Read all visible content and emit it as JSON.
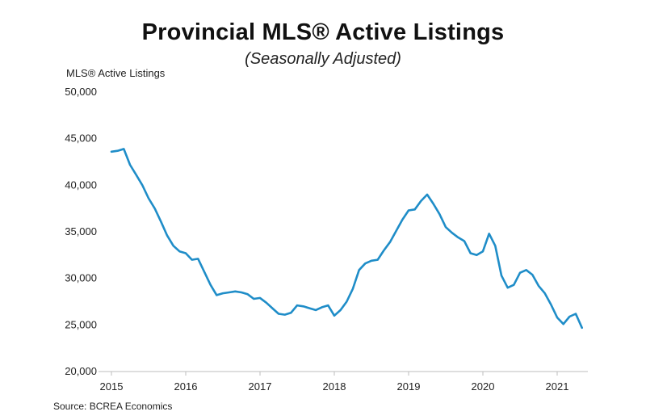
{
  "chart_data": {
    "type": "line",
    "title": "Provincial MLS® Active Listings",
    "subtitle": "(Seasonally Adjusted)",
    "ylabel": "MLS® Active Listings",
    "xlabel": "",
    "source": "Source: BCREA Economics",
    "ylim": [
      20000,
      50000
    ],
    "xlim": [
      2015,
      2021.45
    ],
    "yticks": [
      "50,000",
      "45,000",
      "40,000",
      "35,000",
      "30,000",
      "25,000",
      "20,000"
    ],
    "ytick_values": [
      50000,
      45000,
      40000,
      35000,
      30000,
      25000,
      20000
    ],
    "xticks": [
      "2015",
      "2016",
      "2017",
      "2018",
      "2019",
      "2020",
      "2021"
    ],
    "xtick_values": [
      2015,
      2016,
      2017,
      2018,
      2019,
      2020,
      2021
    ],
    "grid": false,
    "line_color": "#1f8dc8",
    "series": [
      {
        "start": "2015-01",
        "values": [
          43600,
          43700,
          43900,
          42200,
          41100,
          40000,
          38600,
          37500,
          36100,
          34600,
          33500,
          32900,
          32700,
          32000,
          32100,
          30700,
          29300,
          28200,
          28400,
          28500,
          28600,
          28500,
          28300,
          27800,
          27900,
          27400,
          26800,
          26200,
          26100,
          26300,
          27100,
          27000,
          26800,
          26600,
          26900,
          27100,
          26000,
          26600,
          27500,
          28900,
          30900,
          31600,
          31900,
          32000,
          33000,
          33900,
          35100,
          36300,
          37300,
          37400,
          38300,
          39000,
          38000,
          36900,
          35500,
          34900,
          34400,
          34000,
          32700,
          32500,
          32900,
          34800,
          33500,
          30300,
          29000,
          29300,
          30600,
          30900,
          30400,
          29200,
          28400,
          27200,
          25800,
          25100,
          25900,
          26200,
          24700
        ]
      }
    ]
  }
}
